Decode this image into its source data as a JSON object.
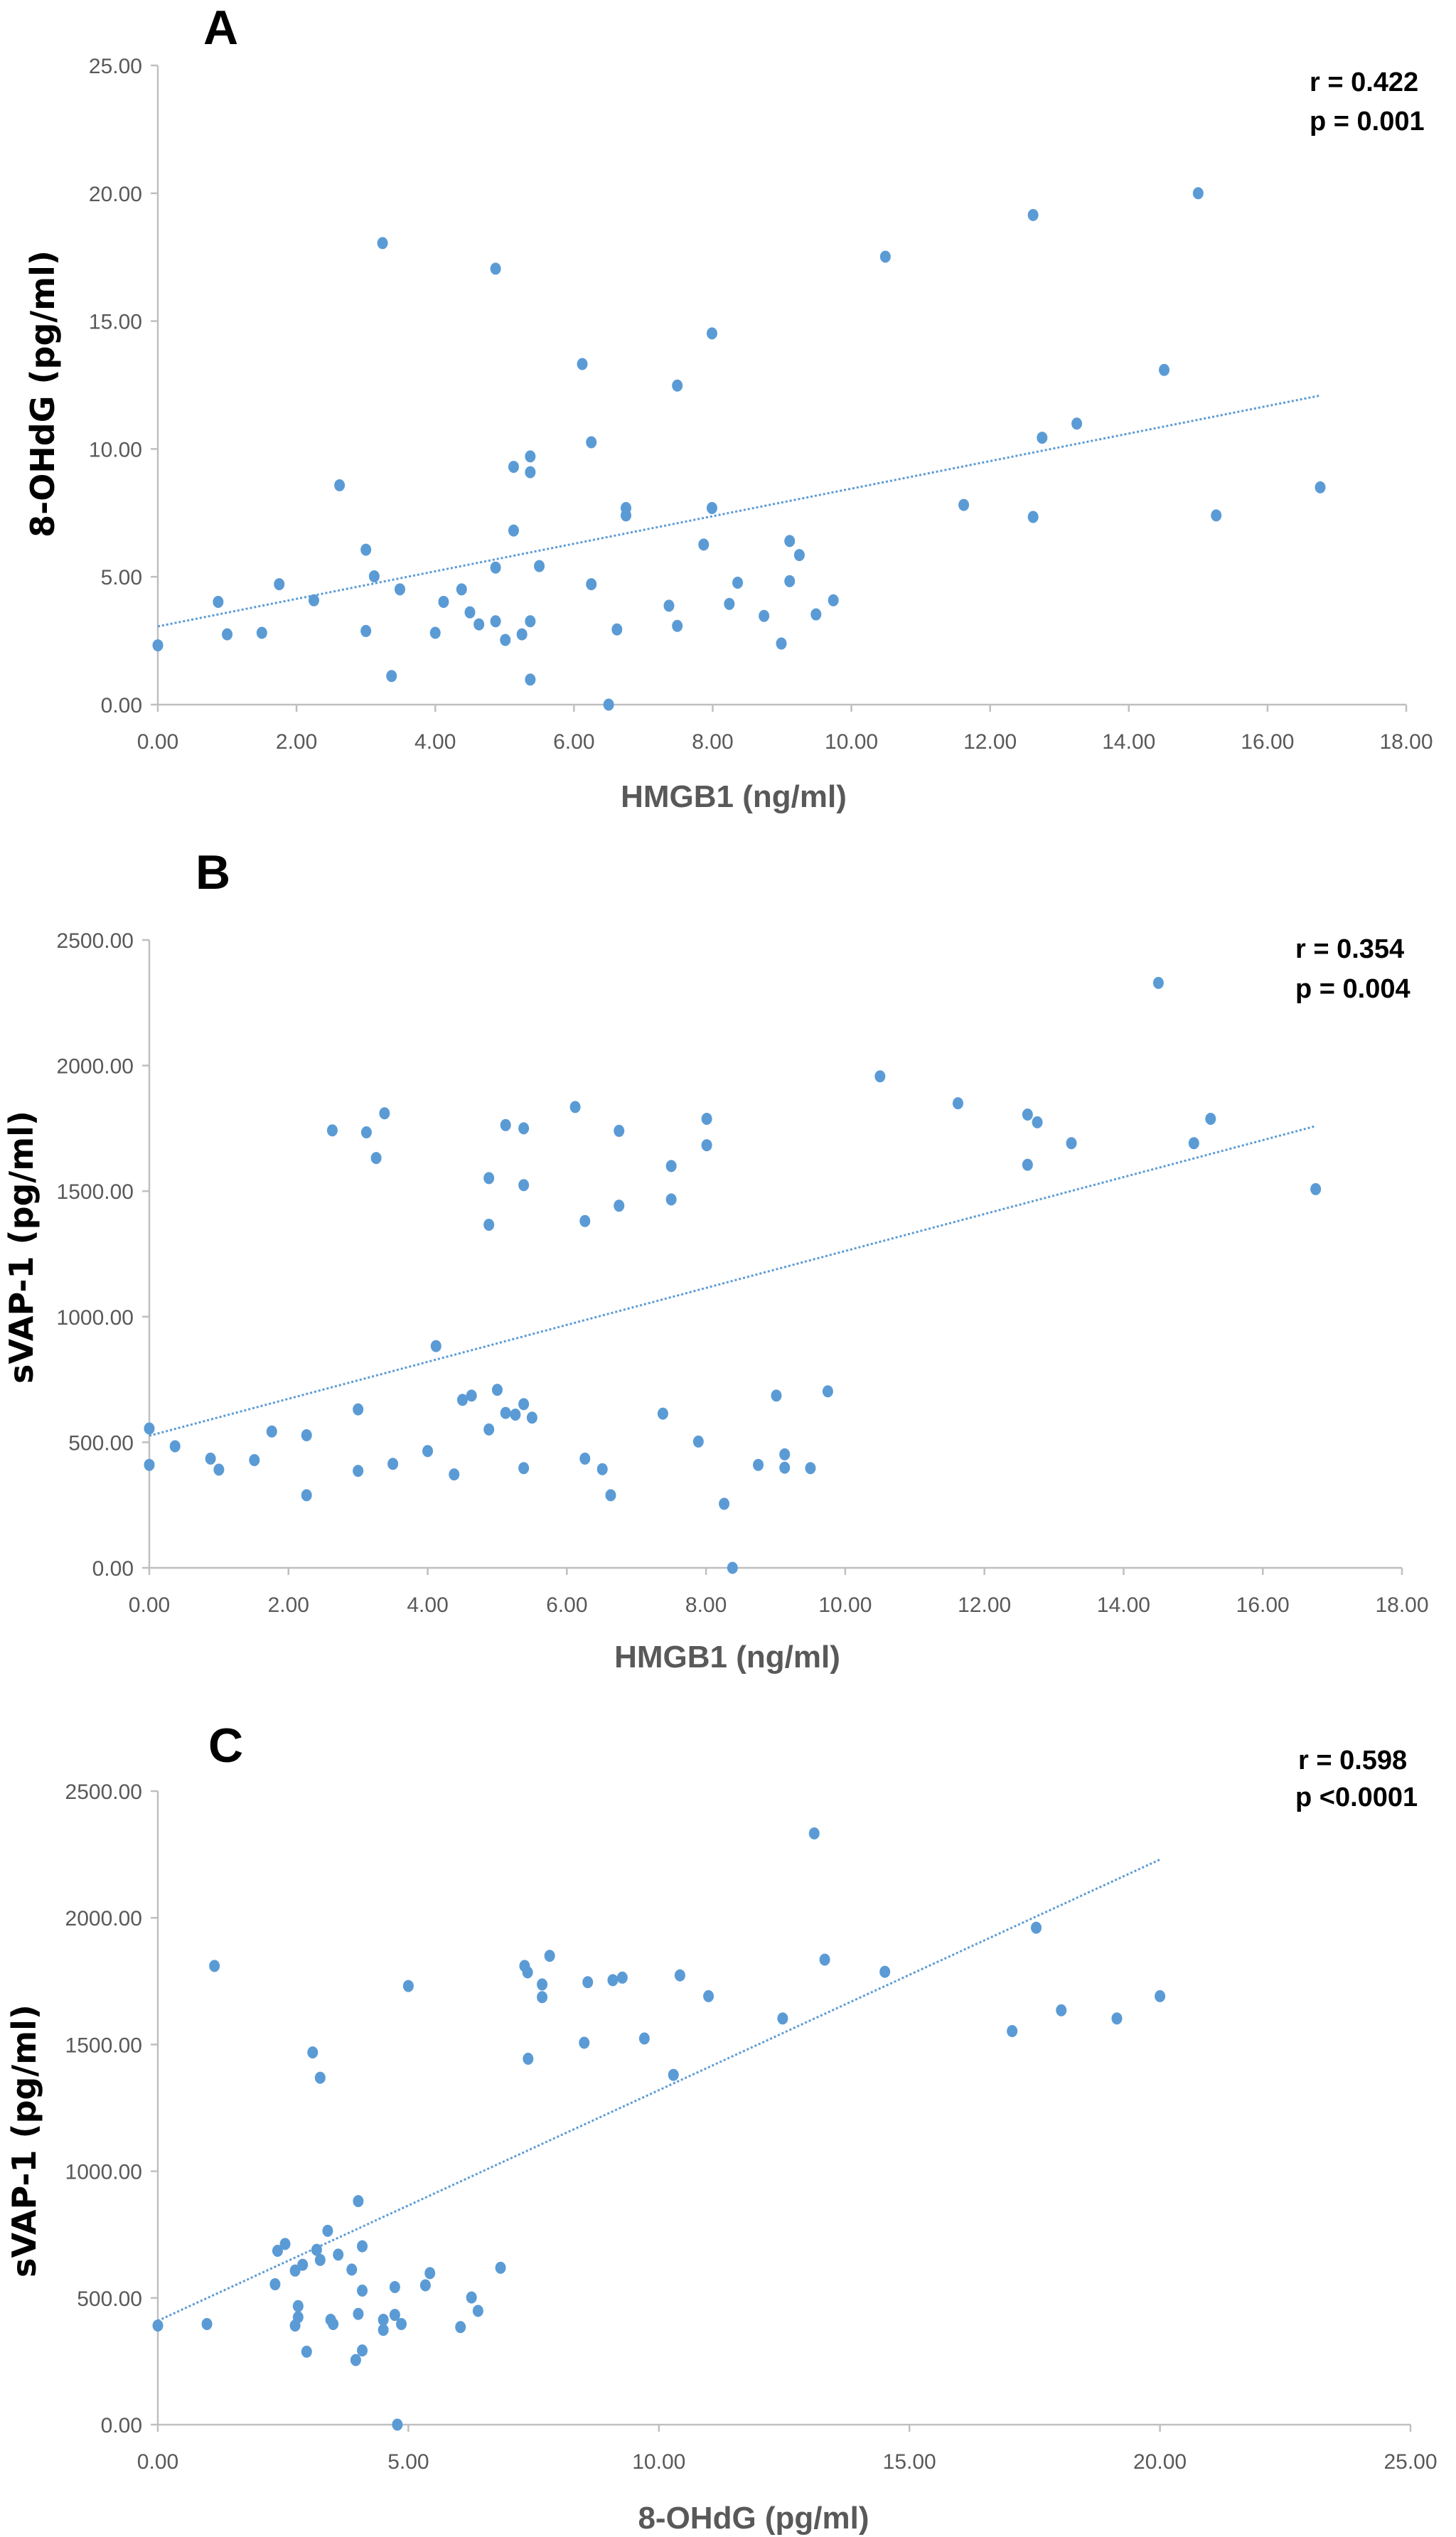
{
  "chart_data": [
    {
      "type": "scatter",
      "panel": "A",
      "xlabel": "HMGB1 (ng/ml)",
      "ylabel": "8-OHdG (pg/ml)",
      "xlim": [
        0,
        18
      ],
      "ylim": [
        0,
        25
      ],
      "xticks": [
        "0.00",
        "2.00",
        "4.00",
        "6.00",
        "8.00",
        "10.00",
        "12.00",
        "14.00",
        "16.00",
        "18.00"
      ],
      "yticks": [
        "0.00",
        "5.00",
        "10.00",
        "15.00",
        "20.00",
        "25.00"
      ],
      "stats": [
        "r = 0.422",
        "p = 0.001"
      ],
      "grid": false,
      "color": "#5b9bd5",
      "trendline": {
        "x": [
          0,
          16.76
        ],
        "y": [
          3.06,
          12.09
        ]
      },
      "points": [
        [
          0.0,
          2.32
        ],
        [
          0.87,
          4.02
        ],
        [
          1.0,
          2.75
        ],
        [
          1.5,
          2.81
        ],
        [
          1.75,
          4.71
        ],
        [
          2.25,
          4.08
        ],
        [
          2.62,
          8.58
        ],
        [
          3.0,
          6.06
        ],
        [
          3.0,
          2.88
        ],
        [
          3.12,
          5.02
        ],
        [
          3.24,
          18.05
        ],
        [
          3.37,
          1.12
        ],
        [
          3.49,
          4.51
        ],
        [
          4.0,
          2.81
        ],
        [
          4.12,
          4.02
        ],
        [
          4.38,
          4.51
        ],
        [
          4.5,
          3.61
        ],
        [
          4.63,
          3.14
        ],
        [
          4.87,
          3.26
        ],
        [
          4.87,
          5.36
        ],
        [
          4.87,
          17.05
        ],
        [
          5.01,
          2.53
        ],
        [
          5.13,
          9.3
        ],
        [
          5.13,
          6.81
        ],
        [
          5.25,
          2.75
        ],
        [
          5.37,
          3.26
        ],
        [
          5.37,
          0.98
        ],
        [
          5.37,
          9.09
        ],
        [
          5.37,
          9.71
        ],
        [
          5.5,
          5.42
        ],
        [
          6.12,
          13.32
        ],
        [
          6.25,
          10.26
        ],
        [
          6.25,
          4.71
        ],
        [
          6.5,
          0.0
        ],
        [
          6.62,
          2.94
        ],
        [
          6.75,
          7.69
        ],
        [
          6.75,
          7.4
        ],
        [
          7.37,
          3.87
        ],
        [
          7.49,
          12.48
        ],
        [
          7.49,
          3.08
        ],
        [
          7.99,
          14.52
        ],
        [
          7.99,
          7.69
        ],
        [
          7.87,
          6.26
        ],
        [
          8.24,
          3.94
        ],
        [
          8.36,
          4.77
        ],
        [
          8.74,
          3.47
        ],
        [
          8.99,
          2.39
        ],
        [
          9.11,
          6.4
        ],
        [
          9.11,
          4.83
        ],
        [
          9.25,
          5.85
        ],
        [
          9.49,
          3.53
        ],
        [
          9.74,
          4.08
        ],
        [
          10.49,
          17.52
        ],
        [
          11.62,
          7.81
        ],
        [
          12.62,
          19.15
        ],
        [
          12.62,
          7.34
        ],
        [
          12.75,
          10.44
        ],
        [
          13.25,
          10.99
        ],
        [
          14.51,
          13.09
        ],
        [
          15.0,
          20.0
        ],
        [
          15.26,
          7.4
        ],
        [
          16.76,
          8.5
        ]
      ]
    },
    {
      "type": "scatter",
      "panel": "B",
      "xlabel": "HMGB1 (ng/ml)",
      "ylabel": "sVAP-1 (pg/ml)",
      "xlim": [
        0,
        18
      ],
      "ylim": [
        0,
        2500
      ],
      "xticks": [
        "0.00",
        "2.00",
        "4.00",
        "6.00",
        "8.00",
        "10.00",
        "12.00",
        "14.00",
        "16.00",
        "18.00"
      ],
      "yticks": [
        "0.00",
        "500.00",
        "1000.00",
        "1500.00",
        "2000.00",
        "2500.00"
      ],
      "stats": [
        "r = 0.354",
        "p = 0.004"
      ],
      "grid": false,
      "color": "#5b9bd5",
      "trendline": {
        "x": [
          0,
          16.76
        ],
        "y": [
          526,
          1759
        ]
      },
      "points": [
        [
          0,
          555
        ],
        [
          0,
          410
        ],
        [
          0.37,
          484
        ],
        [
          0.88,
          435
        ],
        [
          1.0,
          391
        ],
        [
          1.51,
          429
        ],
        [
          1.76,
          543
        ],
        [
          2.26,
          528
        ],
        [
          2.26,
          289
        ],
        [
          2.63,
          1742
        ],
        [
          3.0,
          631
        ],
        [
          3.0,
          386
        ],
        [
          3.12,
          1734
        ],
        [
          3.26,
          1632
        ],
        [
          3.38,
          1810
        ],
        [
          3.5,
          414
        ],
        [
          4.0,
          465
        ],
        [
          4.12,
          883
        ],
        [
          4.38,
          372
        ],
        [
          4.5,
          669
        ],
        [
          4.63,
          686
        ],
        [
          4.88,
          1552
        ],
        [
          4.88,
          1366
        ],
        [
          4.88,
          551
        ],
        [
          5.0,
          709
        ],
        [
          5.12,
          1763
        ],
        [
          5.12,
          617
        ],
        [
          5.26,
          610
        ],
        [
          5.38,
          1750
        ],
        [
          5.38,
          1524
        ],
        [
          5.38,
          652
        ],
        [
          5.38,
          397
        ],
        [
          5.5,
          598
        ],
        [
          6.12,
          1835
        ],
        [
          6.26,
          1381
        ],
        [
          6.26,
          435
        ],
        [
          6.51,
          393
        ],
        [
          6.63,
          289
        ],
        [
          6.75,
          1740
        ],
        [
          6.75,
          1442
        ],
        [
          7.38,
          614
        ],
        [
          7.5,
          1600
        ],
        [
          7.5,
          1467
        ],
        [
          7.89,
          503
        ],
        [
          8.01,
          1788
        ],
        [
          8.01,
          1683
        ],
        [
          8.26,
          255
        ],
        [
          8.38,
          0
        ],
        [
          8.75,
          410
        ],
        [
          9.01,
          686
        ],
        [
          9.13,
          452
        ],
        [
          9.13,
          399
        ],
        [
          9.5,
          397
        ],
        [
          9.75,
          703
        ],
        [
          10.5,
          1957
        ],
        [
          11.62,
          1850
        ],
        [
          12.62,
          1805
        ],
        [
          12.62,
          1605
        ],
        [
          12.76,
          1774
        ],
        [
          13.25,
          1691
        ],
        [
          14.5,
          2329
        ],
        [
          15.01,
          1691
        ],
        [
          15.25,
          1788
        ],
        [
          16.76,
          1508
        ]
      ]
    },
    {
      "type": "scatter",
      "panel": "C",
      "xlabel": "8-OHdG (pg/ml)",
      "ylabel": "sVAP-1 (pg/ml)",
      "xlim": [
        0,
        25
      ],
      "ylim": [
        0,
        2500
      ],
      "xticks": [
        "0.00",
        "5.00",
        "10.00",
        "15.00",
        "20.00",
        "25.00"
      ],
      "yticks": [
        "0.00",
        "500.00",
        "1000.00",
        "1500.00",
        "2000.00",
        "2500.00"
      ],
      "stats": [
        "r = 0.598",
        "p <0.0001"
      ],
      "grid": false,
      "color": "#5b9bd5",
      "trendline": {
        "x": [
          0,
          20
        ],
        "y": [
          410,
          2230
        ]
      },
      "points": [
        [
          0,
          391
        ],
        [
          0.98,
          397
        ],
        [
          1.13,
          1810
        ],
        [
          2.34,
          554
        ],
        [
          2.39,
          686
        ],
        [
          2.54,
          713
        ],
        [
          2.74,
          608
        ],
        [
          2.74,
          391
        ],
        [
          2.8,
          468
        ],
        [
          2.8,
          424
        ],
        [
          2.89,
          631
        ],
        [
          2.97,
          288
        ],
        [
          3.09,
          1469
        ],
        [
          3.17,
          690
        ],
        [
          3.24,
          1369
        ],
        [
          3.24,
          650
        ],
        [
          3.39,
          765
        ],
        [
          3.45,
          414
        ],
        [
          3.5,
          397
        ],
        [
          3.6,
          671
        ],
        [
          3.87,
          612
        ],
        [
          3.95,
          255
        ],
        [
          4.0,
          882
        ],
        [
          4.0,
          437
        ],
        [
          4.08,
          529
        ],
        [
          4.08,
          704
        ],
        [
          4.08,
          293
        ],
        [
          4.5,
          414
        ],
        [
          4.5,
          374
        ],
        [
          4.73,
          433
        ],
        [
          4.73,
          543
        ],
        [
          4.78,
          0
        ],
        [
          4.86,
          397
        ],
        [
          5.0,
          1731
        ],
        [
          5.34,
          550
        ],
        [
          5.43,
          598
        ],
        [
          6.04,
          385
        ],
        [
          6.26,
          502
        ],
        [
          6.39,
          449
        ],
        [
          6.84,
          619
        ],
        [
          7.32,
          1810
        ],
        [
          7.38,
          1785
        ],
        [
          7.39,
          1444
        ],
        [
          7.67,
          1737
        ],
        [
          7.67,
          1687
        ],
        [
          7.82,
          1850
        ],
        [
          8.51,
          1507
        ],
        [
          8.58,
          1746
        ],
        [
          9.08,
          1754
        ],
        [
          9.27,
          1764
        ],
        [
          9.71,
          1524
        ],
        [
          10.29,
          1380
        ],
        [
          10.42,
          1773
        ],
        [
          10.99,
          1691
        ],
        [
          12.47,
          1603
        ],
        [
          13.1,
          2333
        ],
        [
          13.31,
          1835
        ],
        [
          14.51,
          1787
        ],
        [
          17.05,
          1553
        ],
        [
          17.53,
          1961
        ],
        [
          18.03,
          1635
        ],
        [
          19.14,
          1603
        ],
        [
          20.0,
          1691
        ]
      ]
    }
  ]
}
